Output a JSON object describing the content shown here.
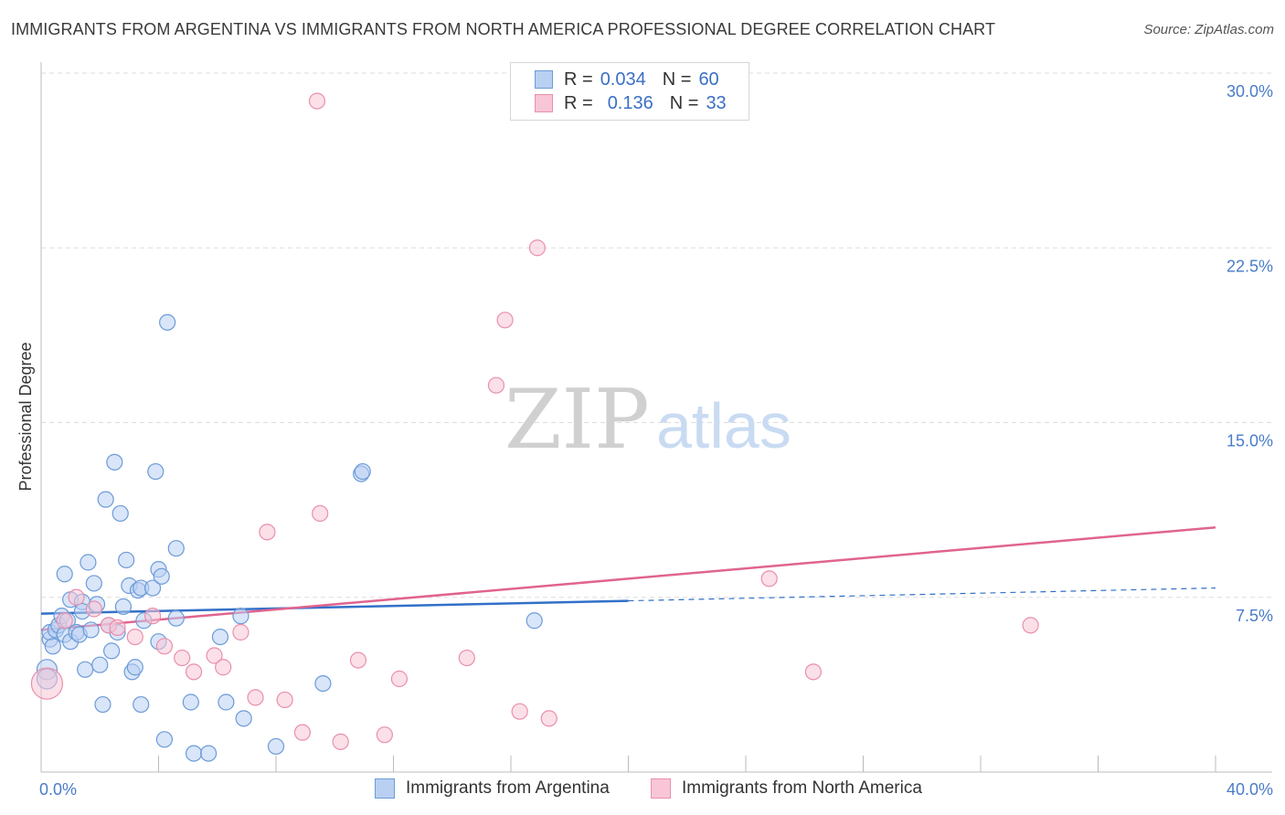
{
  "title": "IMMIGRANTS FROM ARGENTINA VS IMMIGRANTS FROM NORTH AMERICA PROFESSIONAL DEGREE CORRELATION CHART",
  "source": "Source: ZipAtlas.com",
  "watermark": {
    "zip": "ZIP",
    "atlas": "atlas"
  },
  "legend_top": [
    {
      "r_label": "R =",
      "r_value": "0.034",
      "n_label": "N =",
      "n_value": "60"
    },
    {
      "r_label": "R =",
      "r_value": "0.136",
      "n_label": "N =",
      "n_value": "33"
    }
  ],
  "colors": {
    "argentina_fill": "#b9d0f2",
    "argentina_stroke": "#6c9bd8",
    "argentina_line": "#3270c8",
    "na_fill": "#f8c6d6",
    "na_stroke": "#e98fae",
    "na_line": "#e0648f",
    "grid": "#dddddd",
    "tick_text": "#4a7cc9"
  },
  "chart_data": {
    "type": "scatter",
    "title": "IMMIGRANTS FROM ARGENTINA VS IMMIGRANTS FROM NORTH AMERICA PROFESSIONAL DEGREE CORRELATION CHART",
    "xlabel": "",
    "ylabel": "Professional Degree",
    "xlim": [
      0,
      40
    ],
    "ylim": [
      0,
      30
    ],
    "x_tick_labels": [
      "0.0%",
      "40.0%"
    ],
    "y_ticks": [
      7.5,
      15.0,
      22.5,
      30.0
    ],
    "y_tick_labels": [
      "7.5%",
      "15.0%",
      "22.5%",
      "30.0%"
    ],
    "series": [
      {
        "name": "Immigrants from Argentina",
        "r": 0.034,
        "n": 60,
        "trend": {
          "x0": 0,
          "y0": 6.8,
          "x1": 20,
          "y1": 7.35,
          "dashed_to": [
            40,
            7.9
          ]
        },
        "points": [
          [
            0.2,
            4.4
          ],
          [
            0.3,
            5.7
          ],
          [
            0.3,
            6.0
          ],
          [
            0.4,
            5.4
          ],
          [
            0.5,
            6.1
          ],
          [
            0.6,
            6.3
          ],
          [
            0.7,
            6.7
          ],
          [
            0.8,
            5.9
          ],
          [
            0.9,
            6.5
          ],
          [
            0.8,
            8.5
          ],
          [
            1.0,
            5.6
          ],
          [
            1.0,
            7.4
          ],
          [
            1.2,
            6.0
          ],
          [
            1.3,
            5.9
          ],
          [
            1.4,
            7.3
          ],
          [
            1.4,
            6.9
          ],
          [
            1.5,
            4.4
          ],
          [
            1.6,
            9.0
          ],
          [
            1.7,
            6.1
          ],
          [
            1.8,
            8.1
          ],
          [
            1.9,
            7.2
          ],
          [
            2.0,
            4.6
          ],
          [
            2.1,
            2.9
          ],
          [
            2.2,
            11.7
          ],
          [
            2.3,
            6.3
          ],
          [
            2.4,
            5.2
          ],
          [
            2.5,
            13.3
          ],
          [
            2.6,
            6.0
          ],
          [
            2.7,
            11.1
          ],
          [
            2.8,
            7.1
          ],
          [
            2.9,
            9.1
          ],
          [
            3.0,
            8.0
          ],
          [
            3.1,
            4.3
          ],
          [
            3.2,
            4.5
          ],
          [
            3.3,
            7.8
          ],
          [
            3.4,
            7.9
          ],
          [
            3.4,
            2.9
          ],
          [
            3.5,
            6.5
          ],
          [
            3.8,
            7.9
          ],
          [
            3.9,
            12.9
          ],
          [
            4.0,
            5.6
          ],
          [
            4.0,
            8.7
          ],
          [
            4.1,
            8.4
          ],
          [
            4.2,
            1.4
          ],
          [
            4.3,
            19.3
          ],
          [
            4.6,
            9.6
          ],
          [
            4.6,
            6.6
          ],
          [
            5.1,
            3.0
          ],
          [
            5.2,
            0.8
          ],
          [
            5.7,
            0.8
          ],
          [
            6.1,
            5.8
          ],
          [
            6.3,
            3.0
          ],
          [
            6.8,
            6.7
          ],
          [
            6.9,
            2.3
          ],
          [
            8.0,
            1.1
          ],
          [
            9.6,
            3.8
          ],
          [
            10.9,
            12.8
          ],
          [
            10.95,
            12.9
          ],
          [
            16.8,
            6.5
          ],
          [
            0.2,
            4.0
          ]
        ]
      },
      {
        "name": "Immigrants from North America",
        "r": 0.136,
        "n": 33,
        "trend": {
          "x0": 0,
          "y0": 6.1,
          "x1": 40,
          "y1": 10.5
        },
        "points": [
          [
            0.2,
            3.8
          ],
          [
            0.8,
            6.5
          ],
          [
            1.2,
            7.5
          ],
          [
            1.8,
            7.0
          ],
          [
            2.3,
            6.3
          ],
          [
            2.6,
            6.2
          ],
          [
            3.2,
            5.8
          ],
          [
            3.8,
            6.7
          ],
          [
            4.2,
            5.4
          ],
          [
            4.8,
            4.9
          ],
          [
            5.2,
            4.3
          ],
          [
            5.9,
            5.0
          ],
          [
            6.2,
            4.5
          ],
          [
            6.8,
            6.0
          ],
          [
            7.3,
            3.2
          ],
          [
            7.7,
            10.3
          ],
          [
            8.3,
            3.1
          ],
          [
            8.9,
            1.7
          ],
          [
            9.4,
            28.8
          ],
          [
            9.5,
            11.1
          ],
          [
            10.2,
            1.3
          ],
          [
            10.8,
            4.8
          ],
          [
            11.7,
            1.6
          ],
          [
            12.2,
            4.0
          ],
          [
            14.5,
            4.9
          ],
          [
            15.5,
            16.6
          ],
          [
            15.8,
            19.4
          ],
          [
            16.3,
            2.6
          ],
          [
            16.9,
            22.5
          ],
          [
            17.3,
            2.3
          ],
          [
            24.8,
            8.3
          ],
          [
            26.3,
            4.3
          ],
          [
            33.7,
            6.3
          ]
        ]
      }
    ]
  },
  "bottom_legend": [
    {
      "label": "Immigrants from Argentina"
    },
    {
      "label": "Immigrants from North America"
    }
  ]
}
